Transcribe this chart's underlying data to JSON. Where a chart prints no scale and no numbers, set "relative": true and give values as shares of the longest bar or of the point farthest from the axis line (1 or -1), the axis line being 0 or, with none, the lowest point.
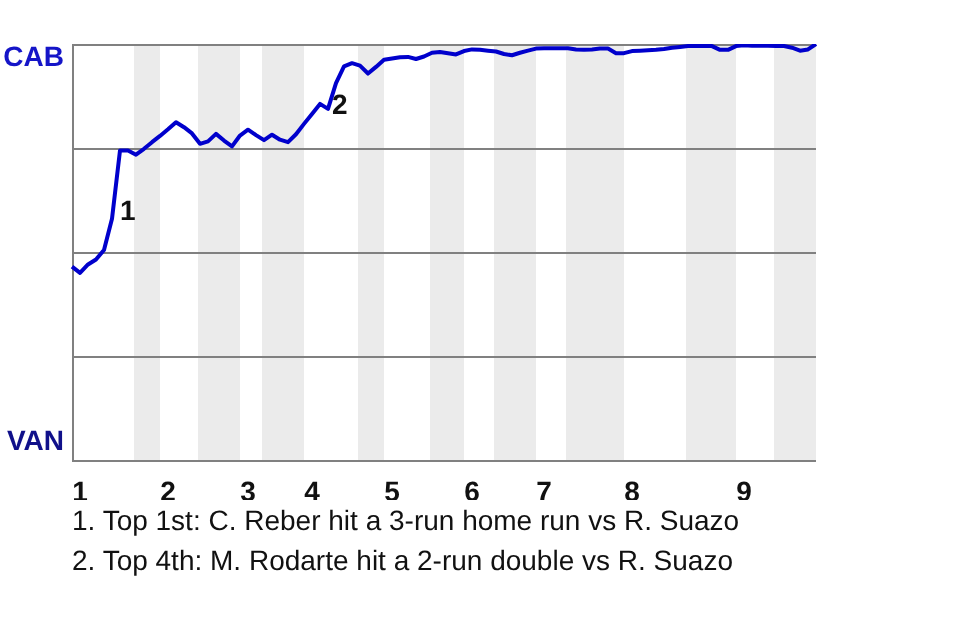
{
  "chart_data": {
    "type": "line",
    "color": "#0000cc",
    "marker": "none",
    "grid": "y",
    "legend": false,
    "relative": true,
    "categories": [
      null,
      "1",
      null,
      null,
      null,
      null,
      null,
      null,
      null,
      null,
      null,
      null,
      "2",
      null,
      null,
      null,
      null,
      null,
      null,
      null,
      null,
      null,
      "3",
      null,
      null,
      null,
      null,
      null,
      null,
      null,
      "4",
      null,
      null,
      null,
      null,
      null,
      null,
      null,
      null,
      null,
      "5",
      null,
      null,
      null,
      null,
      null,
      null,
      null,
      null,
      null,
      "6",
      null,
      null,
      null,
      null,
      null,
      null,
      null,
      null,
      "7",
      null,
      null,
      null,
      null,
      null,
      null,
      null,
      null,
      null,
      null,
      "8",
      null,
      null,
      null,
      null,
      null,
      null,
      null,
      null,
      null,
      null,
      null,
      null,
      null,
      "9",
      null,
      null,
      null,
      null,
      null,
      null,
      null,
      null,
      null
    ],
    "values": [
      0.465,
      0.45,
      0.47,
      0.482,
      0.505,
      0.58,
      0.744,
      0.744,
      0.734,
      0.748,
      0.764,
      0.779,
      0.795,
      0.812,
      0.8,
      0.785,
      0.76,
      0.766,
      0.784,
      0.768,
      0.754,
      0.78,
      0.794,
      0.781,
      0.769,
      0.782,
      0.77,
      0.764,
      0.783,
      0.808,
      0.832,
      0.856,
      0.844,
      0.906,
      0.946,
      0.954,
      0.948,
      0.929,
      0.945,
      0.962,
      0.965,
      0.968,
      0.969,
      0.964,
      0.97,
      0.979,
      0.981,
      0.978,
      0.975,
      0.983,
      0.987,
      0.986,
      0.984,
      0.982,
      0.976,
      0.973,
      0.979,
      0.984,
      0.989,
      0.99,
      0.99,
      0.99,
      0.99,
      0.987,
      0.986,
      0.987,
      0.989,
      0.989,
      0.978,
      0.978,
      0.983,
      0.984,
      0.985,
      0.986,
      0.988,
      0.991,
      0.993,
      0.995,
      0.995,
      0.995,
      0.995,
      0.986,
      0.986,
      0.995,
      0.997,
      0.996,
      0.996,
      0.996,
      0.995,
      0.995,
      0.991,
      0.984,
      0.987,
      1
    ],
    "annotations": [
      "CAB",
      "VAN",
      "1",
      "2",
      "1. Top 1st: C. Reber hit a 3-run home run vs R. Suazo",
      "2. Top 4th: M. Rodarte hit a 2-run double vs R. Suazo"
    ]
  }
}
